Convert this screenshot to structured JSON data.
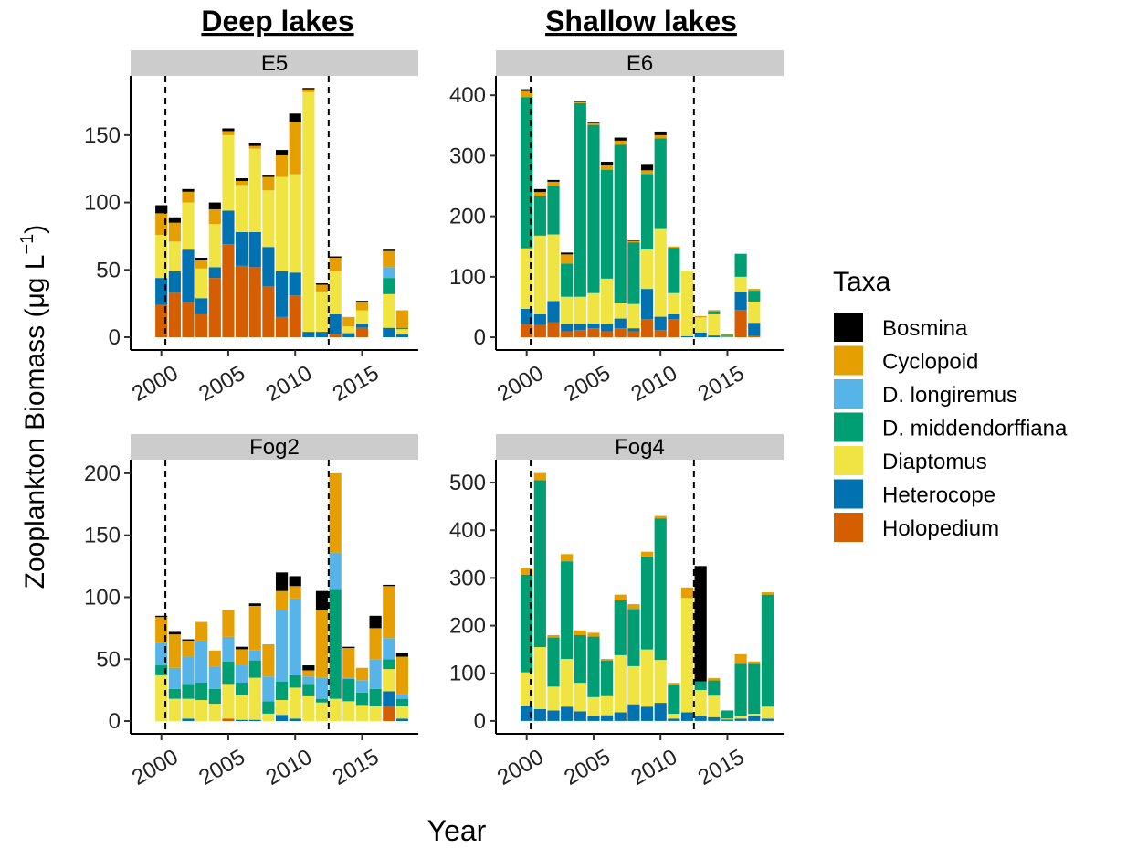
{
  "chart_data": {
    "type": "bar",
    "stacked": true,
    "column_titles": [
      "Deep lakes",
      "Shallow lakes"
    ],
    "y_label": [
      "Zooplankton Biomass  (μg L",
      "−1",
      ")"
    ],
    "x_label": "Year",
    "legend_title": "Taxa",
    "legend_position": "right",
    "taxa": [
      {
        "name": "Bosmina",
        "color": "#000000"
      },
      {
        "name": "Cyclopoid",
        "color": "#E69F00"
      },
      {
        "name": "D. longiremus",
        "color": "#56B4E9"
      },
      {
        "name": "D. middendorffiana",
        "color": "#009E73"
      },
      {
        "name": "Diaptomus",
        "color": "#F0E442"
      },
      {
        "name": "Heterocope",
        "color": "#0072B2"
      },
      {
        "name": "Holopedium",
        "color": "#D55E00"
      }
    ],
    "xlim": [
      1997.7,
      2019.2
    ],
    "xticks": [
      2000,
      2005,
      2010,
      2015
    ],
    "vlines": [
      2000.3,
      2012.5
    ],
    "panels": [
      {
        "title": "E5",
        "ylim": [
          -9.5,
          194
        ],
        "yticks": [
          0,
          50,
          100,
          150
        ],
        "x": [
          2000,
          2001,
          2002,
          2003,
          2004,
          2005,
          2006,
          2007,
          2008,
          2009,
          2010,
          2011,
          2012,
          2013,
          2014,
          2015,
          2017,
          2018
        ],
        "values": [
          [
            6,
            4,
            2,
            2,
            5,
            2,
            2,
            2,
            1,
            4,
            6,
            1,
            1,
            1,
            0,
            1,
            1,
            0
          ],
          [
            16,
            14,
            8,
            6,
            11,
            3,
            3,
            2,
            10,
            16,
            39,
            2,
            5,
            10,
            7,
            6,
            12,
            13
          ],
          [
            0,
            0,
            0,
            0,
            0,
            0,
            0,
            0,
            0,
            0,
            0,
            0,
            0,
            0,
            0,
            0,
            8,
            0
          ],
          [
            0,
            0,
            0,
            0,
            0,
            0,
            0,
            0,
            0,
            0,
            0,
            0,
            0,
            0,
            0,
            0,
            12,
            1
          ],
          [
            32,
            22,
            35,
            22,
            32,
            56,
            35,
            62,
            42,
            70,
            73,
            178,
            30,
            32,
            5,
            10,
            25,
            4
          ],
          [
            20,
            16,
            39,
            12,
            8,
            25,
            25,
            26,
            29,
            34,
            17,
            4,
            4,
            15,
            3,
            3,
            7,
            2
          ],
          [
            24,
            33,
            26,
            17,
            44,
            69,
            53,
            52,
            38,
            15,
            31,
            0,
            0,
            2,
            0,
            7,
            0,
            0
          ]
        ]
      },
      {
        "title": "E6",
        "ylim": [
          -21,
          432
        ],
        "yticks": [
          0,
          100,
          200,
          300,
          400
        ],
        "x": [
          2000,
          2001,
          2002,
          2003,
          2004,
          2005,
          2006,
          2007,
          2008,
          2009,
          2010,
          2011,
          2012,
          2013,
          2014,
          2015,
          2016,
          2017
        ],
        "values": [
          [
            3,
            5,
            3,
            3,
            1,
            1,
            6,
            5,
            1,
            9,
            6,
            0,
            0,
            0,
            0,
            0,
            0,
            0
          ],
          [
            10,
            7,
            7,
            15,
            2,
            3,
            7,
            7,
            2,
            6,
            5,
            2,
            0,
            2,
            2,
            1,
            0,
            3
          ],
          [
            0,
            0,
            0,
            0,
            0,
            0,
            0,
            0,
            0,
            0,
            0,
            0,
            0,
            0,
            0,
            0,
            0,
            0
          ],
          [
            250,
            65,
            80,
            55,
            320,
            278,
            180,
            262,
            102,
            125,
            150,
            75,
            0,
            0,
            5,
            2,
            38,
            18
          ],
          [
            100,
            130,
            110,
            45,
            45,
            50,
            75,
            25,
            40,
            65,
            145,
            35,
            108,
            25,
            35,
            1,
            25,
            35
          ],
          [
            25,
            18,
            35,
            12,
            10,
            8,
            12,
            16,
            5,
            50,
            22,
            8,
            2,
            8,
            3,
            1,
            30,
            22
          ],
          [
            22,
            20,
            25,
            10,
            12,
            15,
            10,
            15,
            10,
            30,
            12,
            30,
            0,
            0,
            0,
            0,
            45,
            2
          ]
        ]
      },
      {
        "title": "Fog2",
        "ylim": [
          -10.3,
          211
        ],
        "yticks": [
          0,
          50,
          100,
          150,
          200
        ],
        "x": [
          2000,
          2001,
          2002,
          2003,
          2004,
          2005,
          2006,
          2007,
          2008,
          2009,
          2010,
          2011,
          2012,
          2013,
          2014,
          2015,
          2016,
          2017,
          2018
        ],
        "values": [
          [
            1,
            2,
            1,
            0,
            0,
            0,
            2,
            2,
            0,
            15,
            8,
            4,
            15,
            0,
            1,
            0,
            10,
            1,
            3
          ],
          [
            21,
            27,
            13,
            15,
            13,
            22,
            13,
            36,
            26,
            15,
            10,
            5,
            55,
            64,
            24,
            10,
            25,
            42,
            30
          ],
          [
            18,
            17,
            22,
            34,
            18,
            20,
            14,
            8,
            20,
            58,
            62,
            6,
            17,
            30,
            1,
            10,
            24,
            17,
            4
          ],
          [
            8,
            8,
            12,
            14,
            12,
            18,
            10,
            14,
            10,
            15,
            10,
            10,
            3,
            88,
            18,
            10,
            14,
            8,
            6
          ],
          [
            37,
            18,
            16,
            17,
            14,
            28,
            20,
            34,
            6,
            12,
            25,
            20,
            15,
            18,
            16,
            13,
            12,
            18,
            10
          ],
          [
            0,
            0,
            2,
            0,
            0,
            0,
            1,
            1,
            0,
            5,
            2,
            0,
            0,
            0,
            0,
            0,
            0,
            12,
            2
          ],
          [
            0,
            0,
            0,
            0,
            0,
            2,
            0,
            0,
            0,
            0,
            0,
            0,
            0,
            0,
            0,
            0,
            0,
            12,
            0
          ]
        ]
      },
      {
        "title": "Fog4",
        "ylim": [
          -27,
          548
        ],
        "yticks": [
          0,
          100,
          200,
          300,
          400,
          500
        ],
        "x": [
          2000,
          2001,
          2002,
          2003,
          2004,
          2005,
          2006,
          2007,
          2008,
          2009,
          2010,
          2011,
          2012,
          2013,
          2014,
          2015,
          2016,
          2017,
          2018
        ],
        "values": [
          [
            0,
            0,
            0,
            0,
            0,
            0,
            0,
            0,
            0,
            0,
            0,
            0,
            0,
            242,
            0,
            0,
            0,
            0,
            0
          ],
          [
            13,
            15,
            5,
            15,
            10,
            8,
            3,
            12,
            10,
            10,
            5,
            5,
            22,
            0,
            5,
            0,
            20,
            5,
            5
          ],
          [
            0,
            0,
            0,
            0,
            0,
            0,
            0,
            0,
            0,
            0,
            0,
            0,
            0,
            0,
            0,
            0,
            0,
            0,
            0
          ],
          [
            205,
            350,
            103,
            205,
            100,
            127,
            75,
            115,
            120,
            195,
            297,
            60,
            0,
            18,
            32,
            17,
            110,
            105,
            235
          ],
          [
            70,
            130,
            50,
            100,
            60,
            40,
            40,
            120,
            80,
            120,
            90,
            10,
            240,
            55,
            45,
            2,
            5,
            5,
            25
          ],
          [
            32,
            25,
            22,
            30,
            20,
            10,
            12,
            18,
            35,
            30,
            38,
            5,
            18,
            10,
            8,
            3,
            5,
            10,
            5
          ],
          [
            0,
            0,
            0,
            0,
            0,
            0,
            0,
            0,
            0,
            0,
            0,
            0,
            0,
            0,
            0,
            0,
            0,
            0,
            0
          ]
        ]
      }
    ]
  }
}
